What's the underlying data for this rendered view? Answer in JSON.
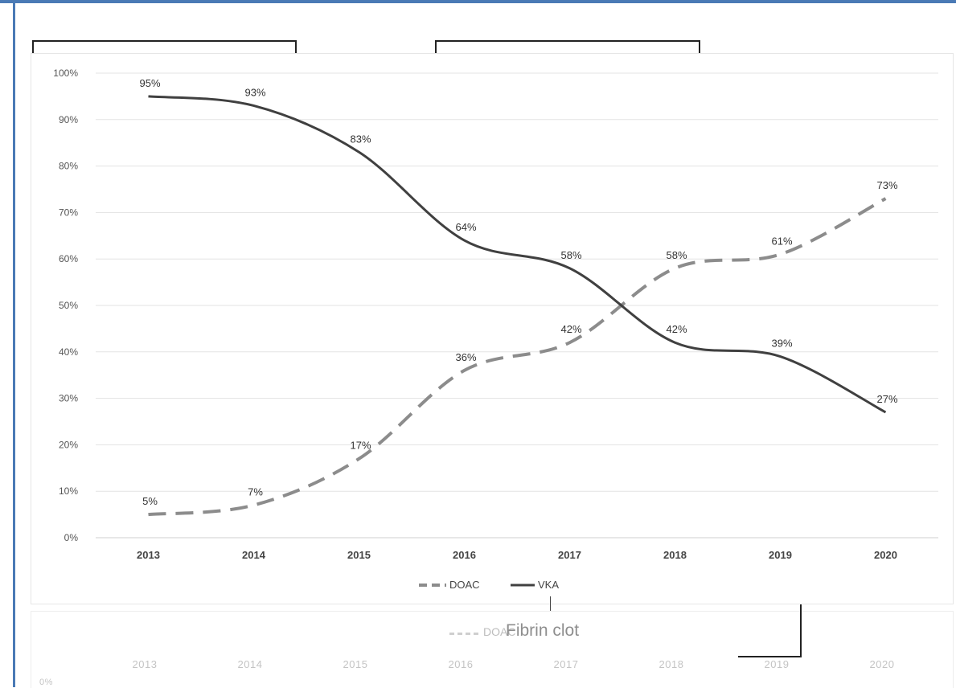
{
  "chart_data": {
    "type": "line",
    "title": "",
    "xlabel": "",
    "ylabel": "",
    "x": [
      "2013",
      "2014",
      "2015",
      "2016",
      "2017",
      "2018",
      "2019",
      "2020"
    ],
    "ylim": [
      0,
      100
    ],
    "yticks": [
      "0%",
      "10%",
      "20%",
      "30%",
      "40%",
      "50%",
      "60%",
      "70%",
      "80%",
      "90%",
      "100%"
    ],
    "grid": true,
    "legend_position": "bottom",
    "series": [
      {
        "name": "DOAC",
        "values": [
          5,
          7,
          17,
          36,
          42,
          58,
          61,
          73
        ],
        "labels": [
          "5%",
          "7%",
          "17%",
          "36%",
          "42%",
          "58%",
          "61%",
          "73%"
        ],
        "style": "dashed",
        "color": "#8c8c8c"
      },
      {
        "name": "VKA",
        "values": [
          95,
          93,
          83,
          64,
          58,
          42,
          39,
          27
        ],
        "labels": [
          "95%",
          "93%",
          "83%",
          "64%",
          "58%",
          "42%",
          "39%",
          "27%"
        ],
        "style": "solid",
        "color": "#404040"
      }
    ]
  },
  "ghost": {
    "title": "Fibrin clot",
    "legend": "DOAC",
    "x": [
      "2013",
      "2014",
      "2015",
      "2016",
      "2017",
      "2018",
      "2019",
      "2020"
    ],
    "ytick": "0%"
  }
}
